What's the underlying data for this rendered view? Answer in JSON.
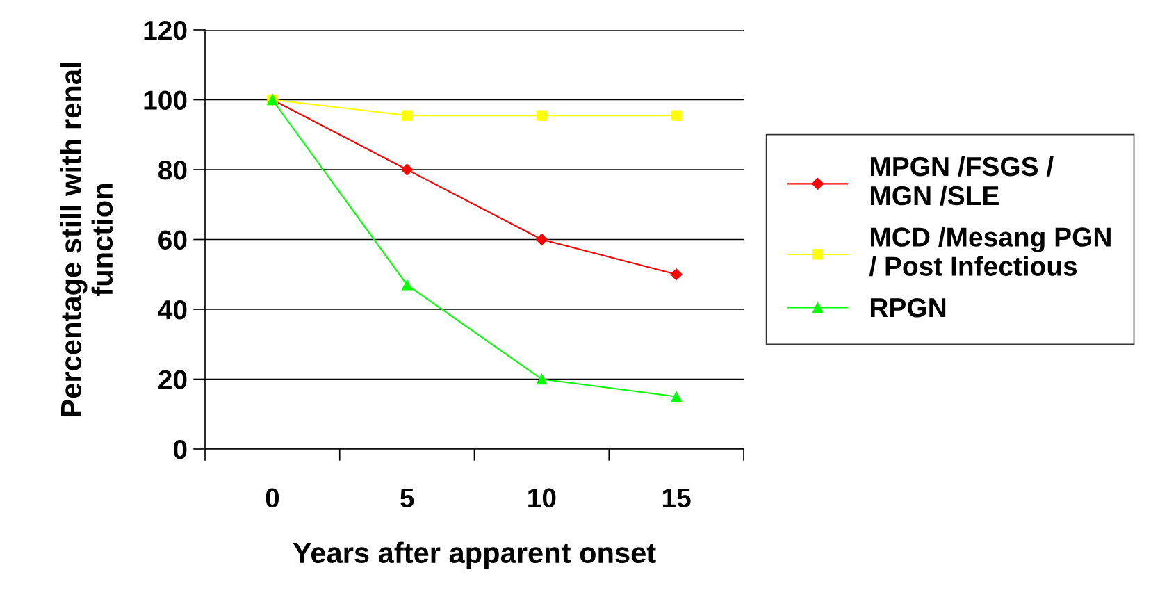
{
  "chart_data": {
    "type": "line",
    "xlabel": "Years after apparent onset",
    "ylabel": "Percentage still with renal\nfunction",
    "categories": [
      "0",
      "5",
      "10",
      "15"
    ],
    "series": [
      {
        "name": "MPGN /FSGS /\nMGN /SLE",
        "color": "#ff0000",
        "marker": "diamond",
        "values": [
          100,
          80,
          60,
          50
        ]
      },
      {
        "name": "MCD /Mesang PGN\n/ Post Infectious",
        "color": "#ffff00",
        "marker": "square",
        "values": [
          100,
          95.5,
          95.5,
          95.5
        ]
      },
      {
        "name": "RPGN",
        "color": "#00ff00",
        "marker": "triangle",
        "values": [
          100,
          47,
          20,
          15
        ]
      }
    ],
    "ylim": [
      0,
      120
    ],
    "yticks": [
      0,
      20,
      40,
      60,
      80,
      100,
      120
    ],
    "grid": "y",
    "legend": "right",
    "line_style": "solid"
  }
}
